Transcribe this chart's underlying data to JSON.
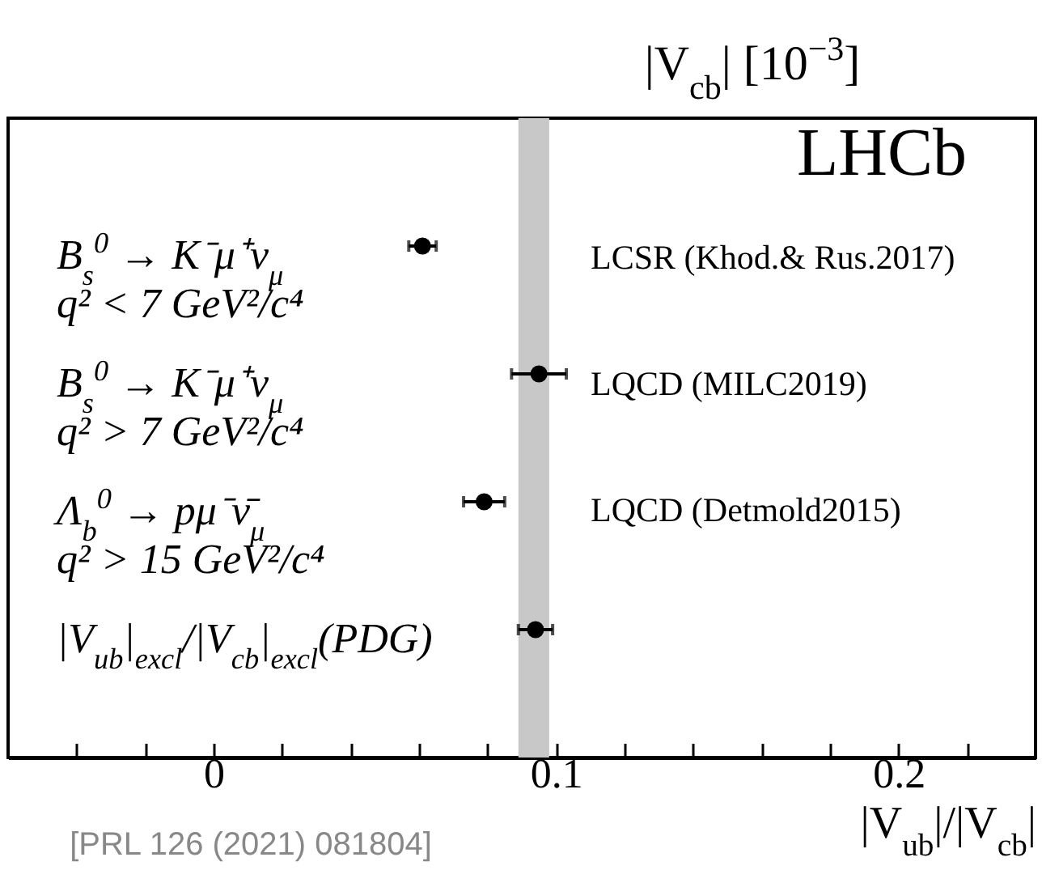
{
  "chart_data": {
    "type": "scatter",
    "categories": [
      "B$_{s}$$^{0}$ → K⁻μ⁺ν$_{μ}$\nq² < 7 GeV²/c⁴",
      "B$_{s}$$^{0}$ → K⁻μ⁺ν$_{μ}$\nq² > 7 GeV²/c⁴",
      "Λ$_{b}$$^{0}$ → pμ⁻ν̄$_{μ}$\nq² > 15 GeV²/c⁴",
      "|V$_{ub}$|$_{excl}$/|V$_{cb}$|$_{excl}$(PDG)"
    ],
    "orientation": "horizontal",
    "values": [
      0.061,
      0.095,
      0.079,
      0.094
    ],
    "errors": [
      0.004,
      0.008,
      0.006,
      0.005
    ],
    "color": "#000000",
    "marker": "circle",
    "xlabel": "|V$_{ub}$|/|V$_{cb}$|",
    "xlim": [
      -0.06,
      0.24
    ],
    "xticks": [
      {
        "value": -0.04,
        "label": null
      },
      {
        "value": -0.02,
        "label": null
      },
      0,
      {
        "value": 0.02,
        "label": null
      },
      {
        "value": 0.04,
        "label": null
      },
      {
        "value": 0.06,
        "label": null
      },
      {
        "value": 0.08,
        "label": null
      },
      0.1,
      {
        "value": 0.12,
        "label": null
      },
      {
        "value": 0.14,
        "label": null
      },
      {
        "value": 0.16,
        "label": null
      },
      {
        "value": 0.18,
        "label": null
      },
      0.2,
      {
        "value": 0.22,
        "label": null
      }
    ],
    "tick_labels": "x",
    "bands": [
      {
        "axis": "x",
        "from": 0.089,
        "to": 0.098,
        "color": "#c8c8c8"
      }
    ],
    "annotations": [
      "LCSR (Khod.& Rus.2017)",
      "LQCD (MILC2019)",
      "LQCD (Detmold2015)",
      "|V$_{cb}$| [10$^{−3}$]",
      "LHCb",
      "[PRL 126 (2021) 081804]"
    ]
  }
}
